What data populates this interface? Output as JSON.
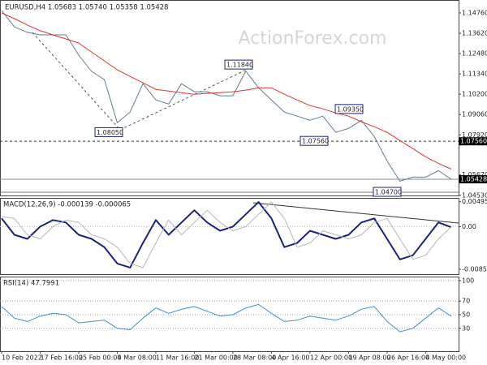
{
  "chart_data": [
    {
      "type": "line",
      "title": "EURUSD,H4 1.05683 1.05740 1.05358 1.05428",
      "watermark": "ActionForex.com",
      "ylim": [
        1.0452,
        1.1544
      ],
      "yticks": [
        {
          "value": 1.1476,
          "label": "1.14760"
        },
        {
          "value": 1.1362,
          "label": "1.13620"
        },
        {
          "value": 1.1248,
          "label": "1.12480"
        },
        {
          "value": 1.1134,
          "label": "1.11340"
        },
        {
          "value": 1.102,
          "label": "1.10200"
        },
        {
          "value": 1.0906,
          "label": "1.09060"
        },
        {
          "value": 1.0792,
          "label": "1.07920"
        },
        {
          "value": 1.0567,
          "label": "1.05670"
        },
        {
          "value": 1.0453,
          "label": "1.04530"
        }
      ],
      "series": [
        {
          "color": "#5f7d8e",
          "values": [
            1.149,
            1.1398,
            1.1367,
            1.1353,
            1.1353,
            1.1353,
            1.1239,
            1.1148,
            1.1102,
            1.086,
            1.092,
            1.1079,
            1.0988,
            1.0965,
            1.1079,
            1.1034,
            1.1034,
            1.1011,
            1.1011,
            1.115,
            1.1056,
            1.0988,
            1.092,
            1.0897,
            1.0874,
            1.0897,
            1.0806,
            1.0828,
            1.0874,
            1.0783,
            1.0646,
            1.0532,
            1.0555,
            1.0555,
            1.0591,
            1.0543
          ]
        },
        {
          "color": "#e0302e",
          "values": [
            1.1476,
            1.1444,
            1.1408,
            1.1376,
            1.1353,
            1.133,
            1.1307,
            1.1257,
            1.1207,
            1.1157,
            1.112,
            1.1084,
            1.1047,
            1.1038,
            1.1029,
            1.102,
            1.1025,
            1.1029,
            1.1034,
            1.1043,
            1.1056,
            1.1056,
            1.102,
            1.0988,
            1.0956,
            1.0938,
            1.0915,
            1.0897,
            1.0865,
            1.0838,
            1.0806,
            1.076,
            1.0715,
            1.0669,
            1.0632,
            1.06
          ]
        }
      ],
      "annotations": [
        {
          "value": 1.1184,
          "label": "1.11840"
        },
        {
          "value": 1.0805,
          "label": "1.08050"
        },
        {
          "value": 1.0756,
          "label": "1.07560"
        },
        {
          "value": 1.0935,
          "label": "1.09350"
        },
        {
          "value": 1.047,
          "label": "1.04700"
        }
      ],
      "hlines": [
        {
          "value": 1.0756,
          "label": "1.07560",
          "dashed": true
        },
        {
          "value": 1.05428,
          "label": "1.05428",
          "dashed": false
        }
      ]
    },
    {
      "type": "line",
      "title": "MACD(12,26,9) -0.000139 -0.000065",
      "ylim": [
        -0.00948,
        0.00556
      ],
      "yticks": [
        0.004956,
        {
          "value": 0,
          "label": "0.00"
        },
        -0.008501
      ],
      "series": [
        {
          "color": "#1a237e",
          "values": [
            0.00163,
            -0.00163,
            -0.00245,
            0,
            0.00131,
            0.00082,
            -0.00163,
            -0.00245,
            -0.00409,
            -0.00736,
            -0.00817,
            -0.00327,
            0.00131,
            -0.00163,
            0.00082,
            0.00327,
            0.00082,
            -0.00082,
            0,
            0.00245,
            0.0049,
            0.00163,
            -0.00409,
            -0.00327,
            -0.00082,
            -0.00163,
            -0.00245,
            -0.00163,
            0.00082,
            0.00163,
            -0.00245,
            -0.00654,
            -0.00572,
            -0.00245,
            0.00082,
            -0.000139
          ]
        },
        {
          "color": "#b5b5b5",
          "values": [
            0.002,
            0.00163,
            -0.00163,
            -0.00245,
            0,
            0.00131,
            0.00082,
            -0.00163,
            -0.00245,
            -0.00409,
            -0.00736,
            -0.00817,
            -0.00327,
            0.00131,
            -0.00163,
            0.00082,
            0.00327,
            0.00082,
            -0.00082,
            0,
            0.00245,
            0.0049,
            0.00163,
            -0.00409,
            -0.00327,
            -0.00082,
            -0.00163,
            -0.00245,
            -0.00163,
            0.00082,
            0.00163,
            -0.00245,
            -0.00654,
            -0.00572,
            -0.00245,
            -6.5e-05
          ]
        }
      ]
    },
    {
      "type": "line",
      "title": "RSI(14) 47.7991",
      "ylim": [
        -3.5,
        104.7
      ],
      "yticks": [
        100,
        70,
        50,
        30
      ],
      "categories": [
        "10 Feb 2022",
        null,
        null,
        "17 Feb 16:00",
        null,
        null,
        "25 Feb 00:00",
        null,
        null,
        "4 Mar 08:00",
        null,
        null,
        "11 Mar 16:00",
        null,
        null,
        "21 Mar 00:00",
        null,
        null,
        "28 Mar 08:00",
        null,
        null,
        "4 Apr 16:00",
        null,
        null,
        "12 Apr 00:00",
        null,
        null,
        "19 Apr 08:00",
        null,
        null,
        "26 Apr 16:00",
        null,
        null,
        "4 May 00:00",
        null,
        null
      ],
      "series": [
        {
          "color": "#3d8fd6",
          "values": [
            62,
            45,
            40,
            48,
            52,
            50,
            38,
            40,
            42,
            30,
            28,
            45,
            60,
            52,
            58,
            62,
            55,
            48,
            50,
            60,
            65,
            52,
            40,
            42,
            48,
            45,
            42,
            48,
            58,
            62,
            40,
            25,
            30,
            45,
            60,
            47.7991
          ]
        }
      ]
    }
  ]
}
